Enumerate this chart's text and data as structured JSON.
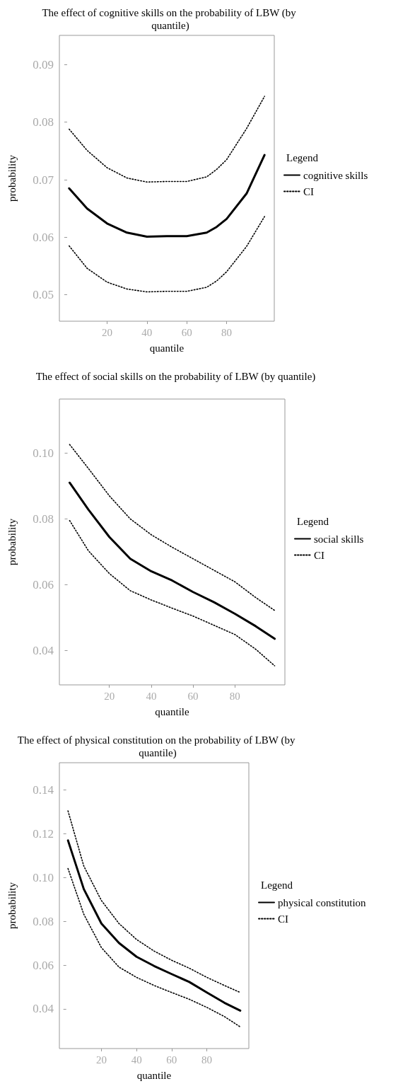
{
  "chart_data": [
    {
      "type": "line",
      "title": "The effect of cognitive skills on the probability of LBW (by quantile)",
      "xlabel": "quantile",
      "ylabel": "probability",
      "legend_title": "Legend",
      "legend": "right",
      "grid": false,
      "marker": "none",
      "x": [
        1,
        10,
        20,
        30,
        40,
        50,
        60,
        70,
        75,
        80,
        90,
        99
      ],
      "xlim": [
        -3.9,
        103.9
      ],
      "xticks": [
        20,
        40,
        60,
        80
      ],
      "ylim": [
        0.0454,
        0.0951
      ],
      "yticks": [
        0.05,
        0.06,
        0.07,
        0.08,
        0.09
      ],
      "series": [
        {
          "name": "cognitive skills",
          "color": "#000000",
          "line_style": "solid",
          "values": [
            0.0685,
            0.065,
            0.0624,
            0.0608,
            0.0601,
            0.0602,
            0.0602,
            0.0608,
            0.0618,
            0.0632,
            0.0676,
            0.0743
          ]
        },
        {
          "name": "CI",
          "color": "#000000",
          "line_style": "dotted",
          "values": [
            0.0788,
            0.0751,
            0.0721,
            0.0703,
            0.0696,
            0.0697,
            0.0697,
            0.0705,
            0.0718,
            0.0735,
            0.0789,
            0.0845
          ]
        },
        {
          "color": "#000000",
          "line_style": "dotted",
          "values": [
            0.0585,
            0.0546,
            0.0522,
            0.051,
            0.0505,
            0.0506,
            0.0506,
            0.0513,
            0.0524,
            0.054,
            0.0584,
            0.0636
          ]
        }
      ]
    },
    {
      "type": "line",
      "title": "The effect of social skills on the probability of LBW (by quantile)",
      "xlabel": "quantile",
      "ylabel": "probability",
      "legend_title": "Legend",
      "legend": "right",
      "grid": false,
      "marker": "none",
      "x": [
        1,
        10,
        20,
        30,
        40,
        50,
        60,
        70,
        80,
        90,
        99
      ],
      "xlim": [
        -3.9,
        103.9
      ],
      "xticks": [
        20,
        40,
        60,
        80
      ],
      "ylim": [
        0.0296,
        0.1164
      ],
      "yticks": [
        0.04,
        0.06,
        0.08,
        {
          "value": 0.1,
          "label": "0.10"
        }
      ],
      "series": [
        {
          "name": "social skills",
          "color": "#000000",
          "line_style": "solid",
          "values": [
            0.091,
            0.0828,
            0.0745,
            0.0679,
            0.0641,
            0.0613,
            0.0578,
            0.0547,
            0.0512,
            0.0474,
            0.0436
          ]
        },
        {
          "name": "CI",
          "color": "#000000",
          "line_style": "dotted",
          "values": [
            0.1026,
            0.0953,
            0.087,
            0.08,
            0.0752,
            0.0714,
            0.0679,
            0.0644,
            0.0609,
            0.0561,
            0.0522
          ]
        },
        {
          "color": "#000000",
          "line_style": "dotted",
          "values": [
            0.0795,
            0.0703,
            0.0634,
            0.0582,
            0.0554,
            0.0529,
            0.0505,
            0.0477,
            0.0449,
            0.0404,
            0.0354
          ]
        }
      ]
    },
    {
      "type": "line",
      "title": "The effect of physical constitution on the probability of LBW (by quantile)",
      "xlabel": "quantile",
      "ylabel": "probability",
      "legend_title": "Legend",
      "legend": "right",
      "grid": false,
      "marker": "none",
      "x": [
        1,
        10,
        20,
        30,
        40,
        50,
        60,
        70,
        80,
        90,
        99
      ],
      "xlim": [
        -3.9,
        103.9
      ],
      "xticks": [
        20,
        40,
        60,
        80
      ],
      "ylim": [
        0.0219,
        0.1524
      ],
      "yticks": [
        0.04,
        0.06,
        0.08,
        {
          "value": 0.1,
          "label": "0.10"
        },
        0.12,
        0.14
      ],
      "series": [
        {
          "name": "physical constitution",
          "color": "#000000",
          "line_style": "solid",
          "values": [
            0.1169,
            0.0947,
            0.079,
            0.0701,
            0.0638,
            0.0596,
            0.0559,
            0.0523,
            0.0475,
            0.0428,
            0.0392
          ]
        },
        {
          "name": "CI",
          "color": "#000000",
          "line_style": "dotted",
          "values": [
            0.1304,
            0.1052,
            0.0895,
            0.079,
            0.0717,
            0.0664,
            0.0622,
            0.0586,
            0.0544,
            0.0507,
            0.0475
          ]
        },
        {
          "color": "#000000",
          "line_style": "dotted",
          "values": [
            0.1041,
            0.0832,
            0.068,
            0.0591,
            0.0544,
            0.0507,
            0.0475,
            0.0444,
            0.0407,
            0.0365,
            0.0318
          ]
        }
      ]
    }
  ]
}
